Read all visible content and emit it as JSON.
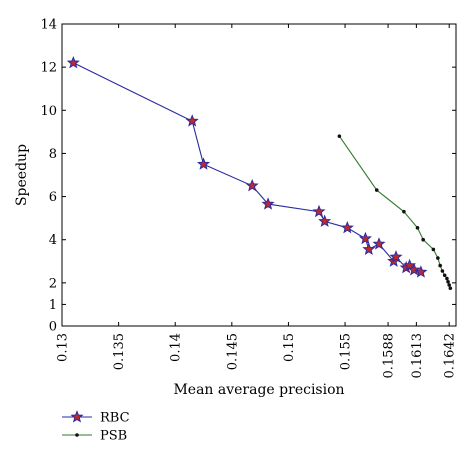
{
  "chart_data": {
    "type": "line",
    "xlabel": "Mean average precision",
    "ylabel": "Speedup",
    "xlim": [
      0.13,
      0.1648
    ],
    "ylim": [
      0,
      14
    ],
    "x_ticks": [
      {
        "value": 0.13,
        "label": "0.13"
      },
      {
        "value": 0.135,
        "label": "0.135"
      },
      {
        "value": 0.14,
        "label": "0.14"
      },
      {
        "value": 0.145,
        "label": "0.145"
      },
      {
        "value": 0.15,
        "label": "0.15"
      },
      {
        "value": 0.155,
        "label": "0.155"
      },
      {
        "value": 0.1588,
        "label": "0.1588"
      },
      {
        "value": 0.1613,
        "label": "0.1613"
      },
      {
        "value": 0.1642,
        "label": "0.1642"
      }
    ],
    "y_ticks": [
      {
        "value": 0,
        "label": "0"
      },
      {
        "value": 1,
        "label": "1"
      },
      {
        "value": 2,
        "label": "2"
      },
      {
        "value": 4,
        "label": "4"
      },
      {
        "value": 6,
        "label": "6"
      },
      {
        "value": 8,
        "label": "8"
      },
      {
        "value": 10,
        "label": "10"
      },
      {
        "value": 12,
        "label": "12"
      },
      {
        "value": 14,
        "label": "14"
      }
    ],
    "grid": false,
    "legend_position": "bottom-left, below plot",
    "series": [
      {
        "name": "RBC",
        "color": "#2b2ba0",
        "marker": "star",
        "marker_fill": "#c0282a",
        "x": [
          0.131,
          0.1415,
          0.1425,
          0.1468,
          0.1482,
          0.1527,
          0.1532,
          0.1552,
          0.1568,
          0.1571,
          0.158,
          0.1593,
          0.1595,
          0.1604,
          0.1607,
          0.1611,
          0.1617
        ],
        "y": [
          12.2,
          9.5,
          7.5,
          6.5,
          5.65,
          5.3,
          4.85,
          4.55,
          4.05,
          3.55,
          3.8,
          3.0,
          3.2,
          2.7,
          2.8,
          2.6,
          2.5
        ]
      },
      {
        "name": "PSB",
        "color": "#2e7d2e",
        "marker": "dot",
        "x": [
          0.1545,
          0.1578,
          0.1602,
          0.1614,
          0.1619,
          0.1628,
          0.1632,
          0.1634,
          0.1636,
          0.1638,
          0.164,
          0.1641,
          0.1642,
          0.1643
        ],
        "y": [
          8.8,
          6.3,
          5.3,
          4.55,
          4.0,
          3.55,
          3.15,
          2.8,
          2.55,
          2.35,
          2.2,
          2.05,
          1.9,
          1.75
        ]
      }
    ]
  }
}
